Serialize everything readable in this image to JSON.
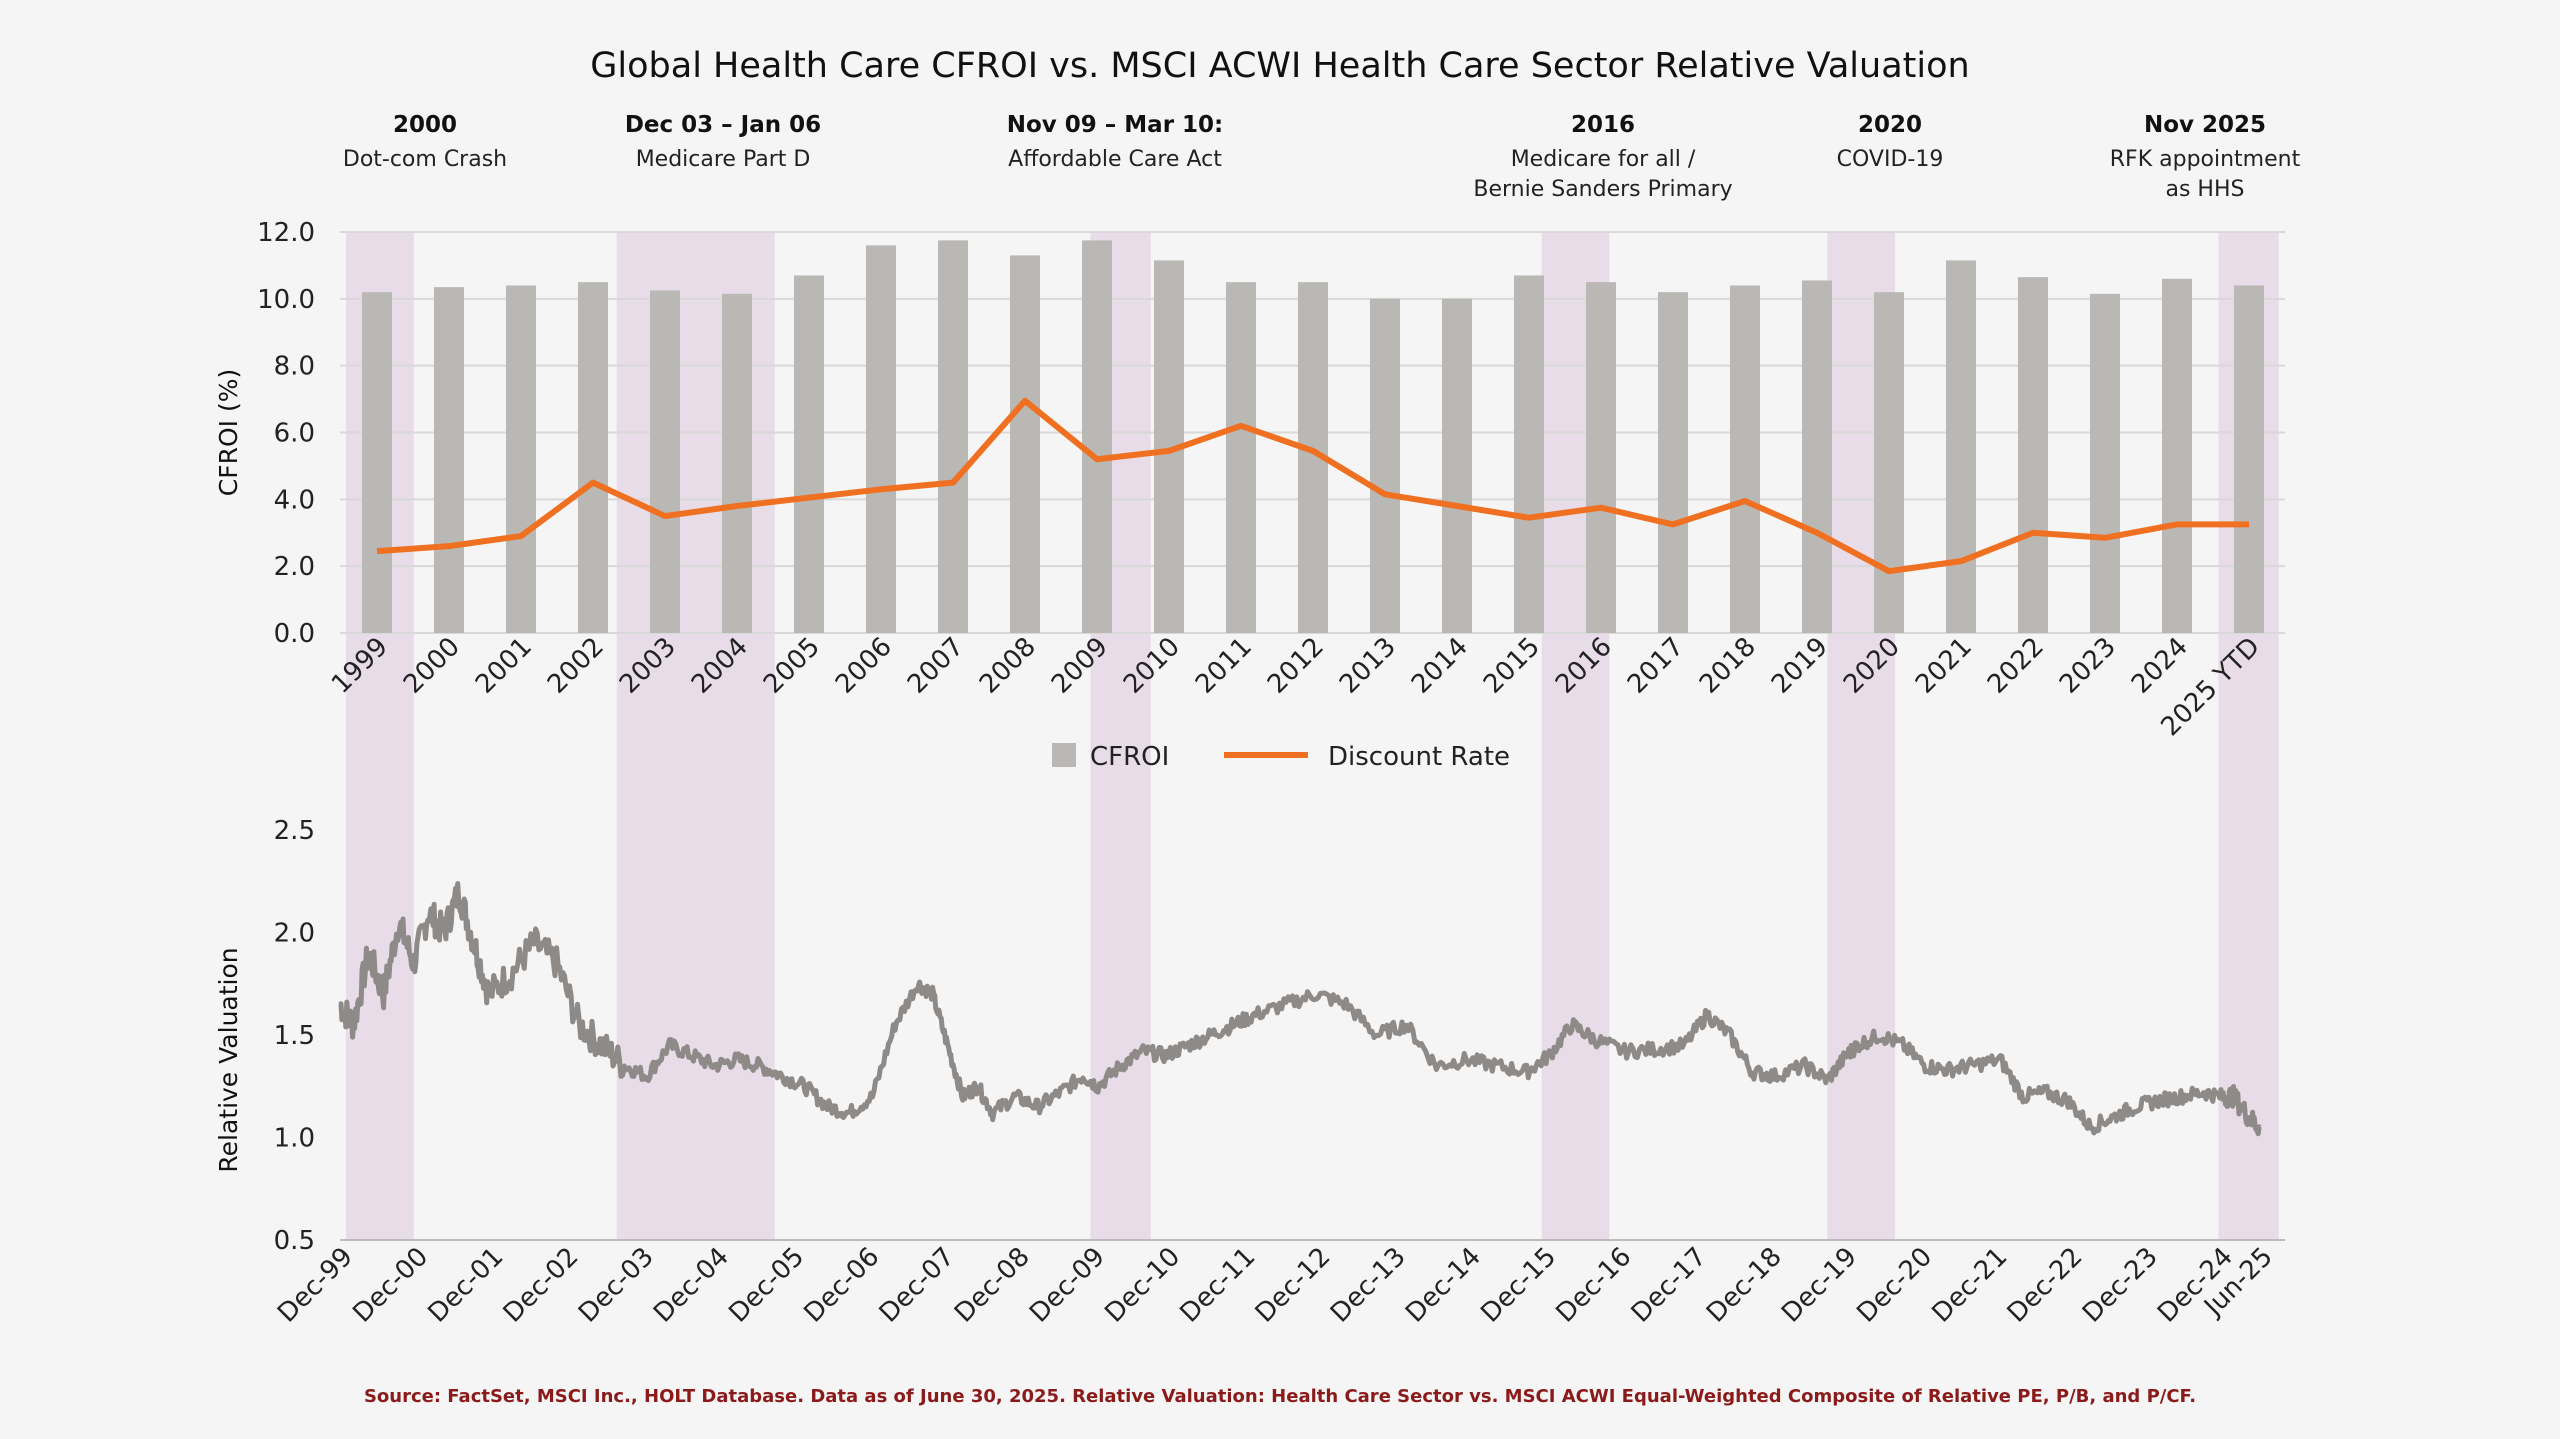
{
  "colors": {
    "bar": "#bab8b5",
    "discount_line": "#f07022",
    "relval_line": "#8e8a87",
    "shade": "#e8dce8",
    "grid": "#d9d9d9",
    "source": "#8b1a1a"
  },
  "chart_data": [
    {
      "type": "bar",
      "title": "Global Health Care CFROI vs. MSCI ACWI Health Care Sector Relative Valuation",
      "xlabel": "",
      "ylabel": "CFROI (%)",
      "ylim": [
        0,
        12
      ],
      "yticks": [
        "0.0",
        "2.0",
        "4.0",
        "6.0",
        "8.0",
        "10.0",
        "12.0"
      ],
      "grid": true,
      "legend_position": "bottom",
      "categories": [
        "1999",
        "2000",
        "2001",
        "2002",
        "2003",
        "2004",
        "2005",
        "2006",
        "2007",
        "2008",
        "2009",
        "2010",
        "2011",
        "2012",
        "2013",
        "2014",
        "2015",
        "2016",
        "2017",
        "2018",
        "2019",
        "2020",
        "2021",
        "2022",
        "2023",
        "2024",
        "2025 YTD"
      ],
      "series": [
        {
          "name": "CFROI",
          "type": "bar",
          "values": [
            10.2,
            10.35,
            10.4,
            10.5,
            10.25,
            10.15,
            10.7,
            11.6,
            11.75,
            11.3,
            11.75,
            11.15,
            10.5,
            10.5,
            10.0,
            10.0,
            10.7,
            10.5,
            10.2,
            10.4,
            10.55,
            10.2,
            11.15,
            10.65,
            10.15,
            10.6,
            10.4
          ]
        },
        {
          "name": "Discount Rate",
          "type": "line",
          "values": [
            2.45,
            2.6,
            2.9,
            4.5,
            3.5,
            3.8,
            4.05,
            4.3,
            4.5,
            6.95,
            5.2,
            5.45,
            6.2,
            5.45,
            4.15,
            3.8,
            3.45,
            3.75,
            3.25,
            3.95,
            3.0,
            1.85,
            2.15,
            3.0,
            2.85,
            3.25,
            3.25
          ]
        }
      ]
    },
    {
      "type": "line",
      "xlabel": "",
      "ylabel": "Relative Valuation",
      "ylim": [
        0.5,
        2.5
      ],
      "yticks": [
        "0.5",
        "1.0",
        "1.5",
        "2.0",
        "2.5"
      ],
      "grid": false,
      "categories": [
        "Dec-99",
        "Dec-00",
        "Dec-01",
        "Dec-02",
        "Dec-03",
        "Dec-04",
        "Dec-05",
        "Dec-06",
        "Dec-07",
        "Dec-08",
        "Dec-09",
        "Dec-10",
        "Dec-11",
        "Dec-12",
        "Dec-13",
        "Dec-14",
        "Dec-15",
        "Dec-16",
        "Dec-17",
        "Dec-18",
        "Dec-19",
        "Dec-20",
        "Dec-21",
        "Dec-22",
        "Dec-23",
        "Dec-24",
        "Jun-25"
      ],
      "series": [
        {
          "name": "Relative Valuation",
          "x": [
            1999.92,
            2000.1,
            2000.3,
            2000.5,
            2000.7,
            2000.9,
            2001.1,
            2001.3,
            2001.5,
            2001.7,
            2001.9,
            2002.2,
            2002.5,
            2002.8,
            2003.1,
            2003.4,
            2003.7,
            2004.0,
            2004.3,
            2004.6,
            2004.9,
            2005.2,
            2005.5,
            2005.8,
            2006.1,
            2006.4,
            2006.7,
            2007.0,
            2007.3,
            2007.6,
            2007.8,
            2008.0,
            2008.2,
            2008.4,
            2008.6,
            2008.9,
            2009.2,
            2009.5,
            2009.8,
            2010.0,
            2010.3,
            2010.6,
            2010.9,
            2011.2,
            2011.5,
            2011.8,
            2012.1,
            2012.5,
            2012.9,
            2013.3,
            2013.7,
            2014.1,
            2014.5,
            2014.9,
            2015.3,
            2015.7,
            2016.0,
            2016.3,
            2016.6,
            2017.0,
            2017.4,
            2017.8,
            2018.1,
            2018.4,
            2018.7,
            2019.0,
            2019.4,
            2019.7,
            2019.95,
            2020.1,
            2020.4,
            2020.7,
            2021.0,
            2021.3,
            2021.6,
            2022.0,
            2022.3,
            2022.6,
            2022.9,
            2023.2,
            2023.5,
            2023.8,
            2024.1,
            2024.4,
            2024.7,
            2024.95,
            2025.1,
            2025.3,
            2025.45
          ],
          "values": [
            1.65,
            1.55,
            1.9,
            1.7,
            2.05,
            1.85,
            2.1,
            2.0,
            2.2,
            1.95,
            1.7,
            1.8,
            1.95,
            1.85,
            1.55,
            1.45,
            1.35,
            1.3,
            1.45,
            1.4,
            1.35,
            1.38,
            1.35,
            1.3,
            1.25,
            1.15,
            1.12,
            1.2,
            1.55,
            1.75,
            1.7,
            1.45,
            1.2,
            1.25,
            1.12,
            1.2,
            1.15,
            1.22,
            1.3,
            1.25,
            1.35,
            1.42,
            1.4,
            1.45,
            1.5,
            1.55,
            1.6,
            1.65,
            1.7,
            1.65,
            1.5,
            1.55,
            1.35,
            1.38,
            1.35,
            1.32,
            1.4,
            1.55,
            1.48,
            1.42,
            1.43,
            1.45,
            1.6,
            1.5,
            1.32,
            1.3,
            1.35,
            1.28,
            1.4,
            1.45,
            1.5,
            1.45,
            1.35,
            1.33,
            1.35,
            1.38,
            1.2,
            1.22,
            1.18,
            1.05,
            1.1,
            1.15,
            1.18,
            1.2,
            1.22,
            1.2,
            1.2,
            1.1,
            1.05
          ]
        }
      ]
    }
  ],
  "shaded_periods": [
    {
      "label": "2000",
      "range": [
        2000.0,
        2000.9
      ]
    },
    {
      "label": "Dec 03 – Jan 06",
      "range": [
        2003.6,
        2005.7
      ]
    },
    {
      "label": "Nov 09 – Mar 10",
      "range": [
        2009.9,
        2010.7
      ]
    },
    {
      "label": "2016",
      "range": [
        2015.9,
        2016.8
      ]
    },
    {
      "label": "2020",
      "range": [
        2019.7,
        2020.6
      ]
    },
    {
      "label": "Nov 2025",
      "range": [
        2024.9,
        2025.7
      ]
    }
  ],
  "annotations": [
    {
      "title": "2000",
      "lines": [
        "Dot-com Crash"
      ]
    },
    {
      "title": "Dec 03 – Jan 06",
      "lines": [
        "Medicare Part D"
      ]
    },
    {
      "title": "Nov 09 – Mar 10:",
      "lines": [
        "Affordable Care Act"
      ]
    },
    {
      "title": "2016",
      "lines": [
        "Medicare for all /",
        "Bernie Sanders Primary"
      ]
    },
    {
      "title": "2020",
      "lines": [
        "COVID-19"
      ]
    },
    {
      "title": "Nov 2025",
      "lines": [
        "RFK appointment",
        "as HHS"
      ]
    }
  ],
  "legend": [
    {
      "label": "CFROI",
      "kind": "bar"
    },
    {
      "label": "Discount Rate",
      "kind": "line"
    }
  ],
  "source": "Source: FactSet, MSCI Inc., HOLT Database. Data as of June 30, 2025. Relative Valuation: Health Care Sector vs. MSCI ACWI Equal-Weighted Composite of Relative PE, P/B, and P/CF."
}
